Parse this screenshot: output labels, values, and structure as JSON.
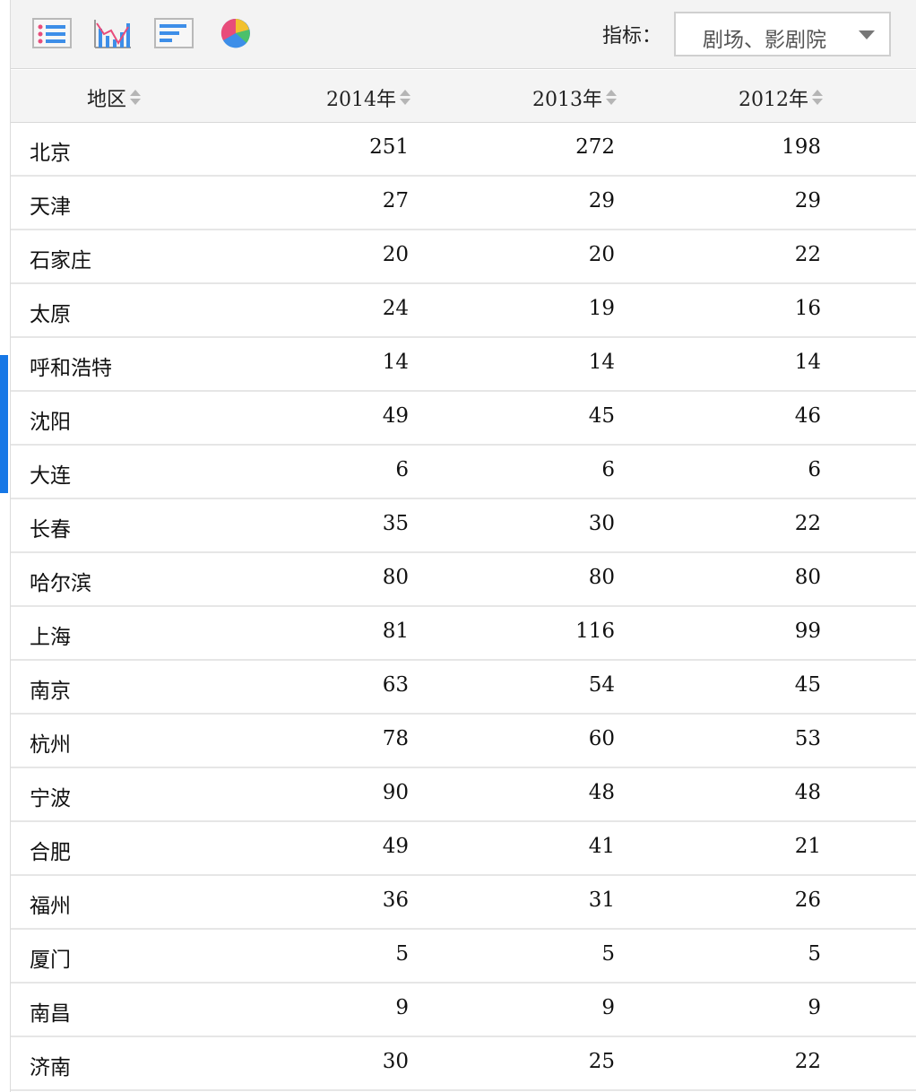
{
  "toolbar": {
    "icons": [
      "table-view-icon",
      "line-chart-icon",
      "bar-chart-icon",
      "pie-chart-icon"
    ],
    "indicator_label": "指标：",
    "indicator_value": "剧场、影剧院"
  },
  "table": {
    "headers": {
      "region": "地区",
      "y2014": "2014年",
      "y2013": "2013年",
      "y2012": "2012年"
    },
    "rows": [
      {
        "region": "北京",
        "y2014": "251",
        "y2013": "272",
        "y2012": "198"
      },
      {
        "region": "天津",
        "y2014": "27",
        "y2013": "29",
        "y2012": "29"
      },
      {
        "region": "石家庄",
        "y2014": "20",
        "y2013": "20",
        "y2012": "22"
      },
      {
        "region": "太原",
        "y2014": "24",
        "y2013": "19",
        "y2012": "16"
      },
      {
        "region": "呼和浩特",
        "y2014": "14",
        "y2013": "14",
        "y2012": "14"
      },
      {
        "region": "沈阳",
        "y2014": "49",
        "y2013": "45",
        "y2012": "46"
      },
      {
        "region": "大连",
        "y2014": "6",
        "y2013": "6",
        "y2012": "6"
      },
      {
        "region": "长春",
        "y2014": "35",
        "y2013": "30",
        "y2012": "22"
      },
      {
        "region": "哈尔滨",
        "y2014": "80",
        "y2013": "80",
        "y2012": "80"
      },
      {
        "region": "上海",
        "y2014": "81",
        "y2013": "116",
        "y2012": "99"
      },
      {
        "region": "南京",
        "y2014": "63",
        "y2013": "54",
        "y2012": "45"
      },
      {
        "region": "杭州",
        "y2014": "78",
        "y2013": "60",
        "y2012": "53"
      },
      {
        "region": "宁波",
        "y2014": "90",
        "y2013": "48",
        "y2012": "48"
      },
      {
        "region": "合肥",
        "y2014": "49",
        "y2013": "41",
        "y2012": "21"
      },
      {
        "region": "福州",
        "y2014": "36",
        "y2013": "31",
        "y2012": "26"
      },
      {
        "region": "厦门",
        "y2014": "5",
        "y2013": "5",
        "y2012": "5"
      },
      {
        "region": "南昌",
        "y2014": "9",
        "y2013": "9",
        "y2012": "9"
      },
      {
        "region": "济南",
        "y2014": "30",
        "y2013": "25",
        "y2012": "22"
      }
    ]
  },
  "colors": {
    "accent": "#1677e6",
    "header_bg": "#f4f4f4",
    "row_border": "#e6e6e6"
  }
}
